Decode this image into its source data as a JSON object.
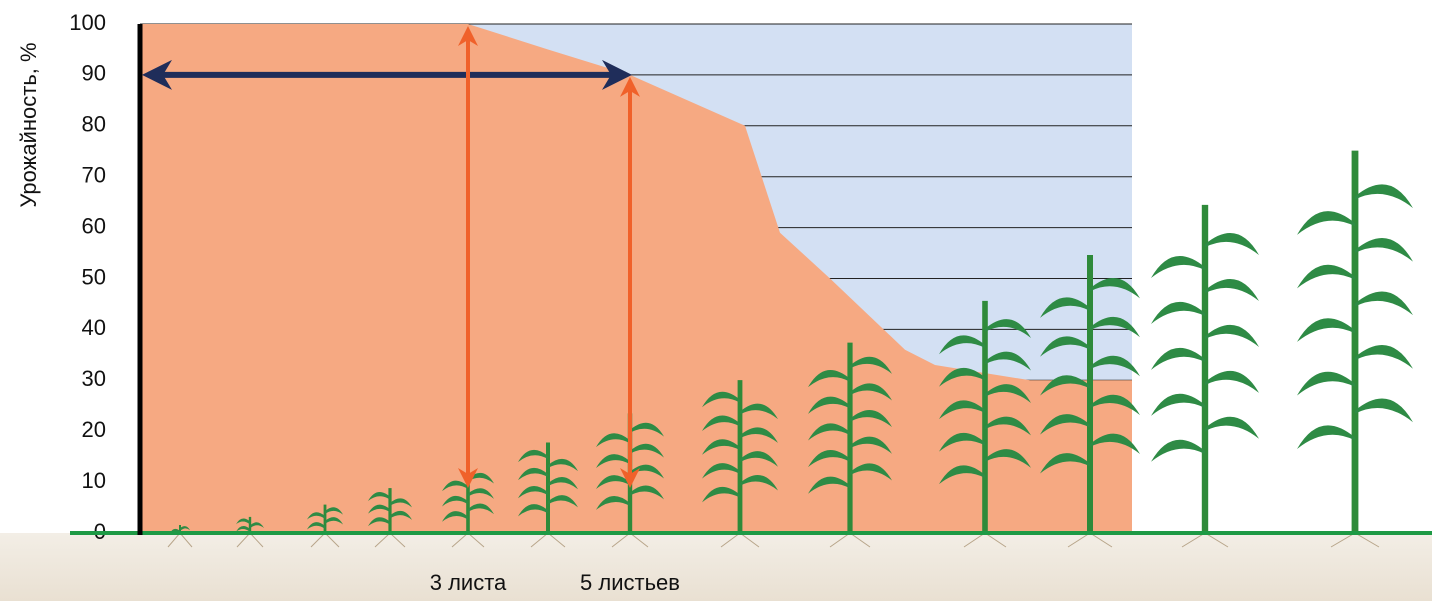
{
  "chart_data": {
    "type": "area",
    "y_label": "Урожайность, %",
    "categories": [
      null,
      null,
      null,
      null,
      "3 листа",
      null,
      "5 листьев",
      null,
      null,
      null,
      null,
      null,
      null,
      null
    ],
    "values": [
      100,
      100,
      100,
      100,
      100,
      95,
      90,
      80,
      59,
      50,
      36,
      33,
      30,
      30
    ],
    "color": "#f6a982",
    "ylim": [
      0,
      100
    ],
    "yticks": [
      0,
      10,
      20,
      30,
      40,
      50,
      60,
      70,
      80,
      90,
      100
    ],
    "grid": true
  }
}
